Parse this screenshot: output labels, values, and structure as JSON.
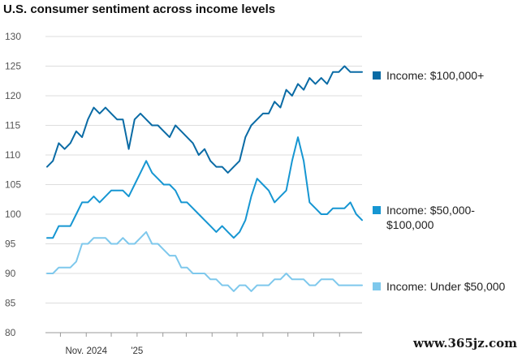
{
  "chart_data": {
    "type": "line",
    "title": "U.S. consumer sentiment across income levels",
    "xlabel": "",
    "ylabel": "",
    "ylim": [
      80,
      130
    ],
    "yticks": [
      80,
      85,
      90,
      95,
      100,
      105,
      110,
      115,
      120,
      125,
      130
    ],
    "x_tick_labels": [
      "Nov. 2024",
      "'25"
    ],
    "grid": true,
    "legend_position": "right",
    "x": [
      "2024-09-15",
      "2024-09-22",
      "2024-09-29",
      "2024-10-06",
      "2024-10-13",
      "2024-10-20",
      "2024-10-27",
      "2024-11-03",
      "2024-11-10",
      "2024-11-17",
      "2024-11-24",
      "2024-12-01",
      "2024-12-08",
      "2024-12-15",
      "2024-12-22",
      "2024-12-29",
      "2025-01-05",
      "2025-01-12",
      "2025-01-19",
      "2025-01-26",
      "2025-02-02",
      "2025-02-09",
      "2025-02-16",
      "2025-02-23",
      "2025-03-02",
      "2025-03-09",
      "2025-03-16",
      "2025-03-23",
      "2025-03-30",
      "2025-04-06",
      "2025-04-13",
      "2025-04-20",
      "2025-04-27",
      "2025-05-04",
      "2025-05-11",
      "2025-05-18",
      "2025-05-25",
      "2025-06-01",
      "2025-06-08",
      "2025-06-15",
      "2025-06-22",
      "2025-06-29",
      "2025-07-06",
      "2025-07-13",
      "2025-07-20",
      "2025-07-27",
      "2025-08-03",
      "2025-08-10",
      "2025-08-17",
      "2025-08-24",
      "2025-08-31",
      "2025-09-07",
      "2025-09-14",
      "2025-09-21",
      "2025-09-28"
    ],
    "series": [
      {
        "name": "Income: $100,000+",
        "color": "#0a6ba5",
        "values": [
          108,
          109,
          112,
          111,
          112,
          114,
          113,
          116,
          118,
          117,
          118,
          117,
          116,
          116,
          111,
          116,
          117,
          116,
          115,
          115,
          114,
          113,
          115,
          114,
          113,
          112,
          110,
          111,
          109,
          108,
          108,
          107,
          108,
          109,
          113,
          115,
          116,
          117,
          117,
          119,
          118,
          121,
          120,
          122,
          121,
          123,
          122,
          123,
          122,
          124,
          124,
          125,
          124,
          124,
          124
        ]
      },
      {
        "name": "Income: $50,000-$100,000",
        "color": "#1696d2",
        "values": [
          96,
          96,
          98,
          98,
          98,
          100,
          102,
          102,
          103,
          102,
          103,
          104,
          104,
          104,
          103,
          105,
          107,
          109,
          107,
          106,
          105,
          105,
          104,
          102,
          102,
          101,
          100,
          99,
          98,
          97,
          98,
          97,
          96,
          97,
          99,
          103,
          106,
          105,
          104,
          102,
          103,
          104,
          109,
          113,
          109,
          102,
          101,
          100,
          100,
          101,
          101,
          101,
          102,
          100,
          99
        ]
      },
      {
        "name": "Income: Under $50,000",
        "color": "#7ec8ec",
        "values": [
          90,
          90,
          91,
          91,
          91,
          92,
          95,
          95,
          96,
          96,
          96,
          95,
          95,
          96,
          95,
          95,
          96,
          97,
          95,
          95,
          94,
          93,
          93,
          91,
          91,
          90,
          90,
          90,
          89,
          89,
          88,
          88,
          87,
          88,
          88,
          87,
          88,
          88,
          88,
          89,
          89,
          90,
          89,
          89,
          89,
          88,
          88,
          89,
          89,
          89,
          88,
          88,
          88,
          88,
          88
        ]
      }
    ]
  },
  "watermark": "www.365jz.com"
}
